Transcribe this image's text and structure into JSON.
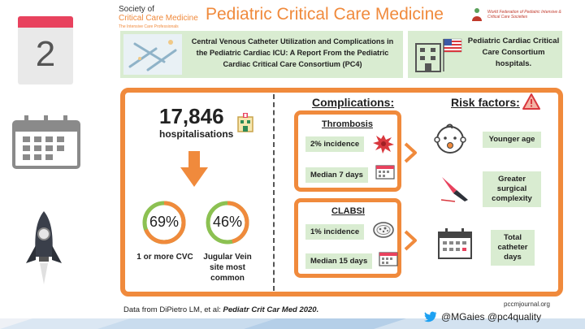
{
  "slide": {
    "number": "2"
  },
  "header": {
    "org_line1": "Society of",
    "org_line2": "Critical Care Medicine",
    "org_tagline": "The Intensive Care Professionals",
    "title": "Pediatric Critical Care Medicine",
    "partner_line1": "World Federation of Pediatric Intensive &",
    "partner_line2": "Critical Care Societies"
  },
  "banner": {
    "paper_title": "Central Venous Catheter Utilization and Complications in the Pediatric Cardiac ICU: A Report From the Pediatric Cardiac Critical Care Consortium (PC4)",
    "hospitals_text": "Pediatric Cardiac Critical Care Consortium hospitals."
  },
  "stats": {
    "count": "17,846",
    "count_label": "hospitalisations",
    "cvc_percent": "69%",
    "cvc_fraction": 0.69,
    "cvc_caption": "1 or more CVC",
    "jugular_percent": "46%",
    "jugular_fraction": 0.46,
    "jugular_caption": "Jugular Vein site most common"
  },
  "complications": {
    "heading": "Complications:",
    "thrombosis": {
      "title": "Thrombosis",
      "incidence": "2% incidence",
      "median": "Median 7 days"
    },
    "clabsi": {
      "title": "CLABSI",
      "incidence": "1% incidence",
      "median": "Median 15 days"
    }
  },
  "risk_factors": {
    "heading": "Risk factors:",
    "items": [
      "Younger age",
      "Greater surgical complexity",
      "Total catheter days"
    ]
  },
  "footer": {
    "url": "pccmjournal.org",
    "citation_prefix": "Data from DiPietro LM, et al: ",
    "citation_journal": "Pediatr Crit Car Med 2020.",
    "social": "@MGaies @pc4quality"
  },
  "colors": {
    "orange": "#f08a3c",
    "green": "#8cc152",
    "pale_green": "#d9ecd1",
    "red": "#e8425e"
  }
}
